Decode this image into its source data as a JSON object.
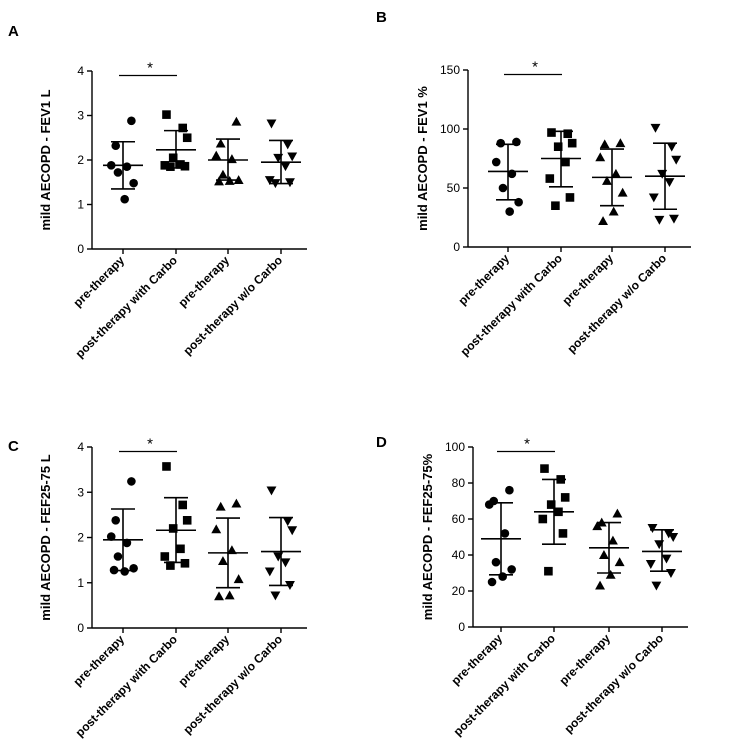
{
  "chart_data": [
    {
      "panel": "A",
      "type": "scatter",
      "ylabel": "mild AECOPD - FEV1 L",
      "ylim": [
        0,
        4
      ],
      "yticks": [
        0,
        1,
        2,
        3,
        4
      ],
      "categories": [
        "pre-therapy",
        "post-therapy with Carbo",
        "pre-therapy",
        "post-therapy w/o Carbo"
      ],
      "markers": [
        "circle",
        "square",
        "triangle-up",
        "triangle-down"
      ],
      "groups": [
        {
          "points": [
            2.88,
            2.32,
            1.88,
            1.85,
            1.72,
            1.48,
            1.12
          ],
          "mean": 1.88,
          "error": [
            1.35,
            2.41
          ]
        },
        {
          "points": [
            3.02,
            2.72,
            2.5,
            2.05,
            1.9,
            1.88,
            1.86,
            1.85
          ],
          "mean": 2.23,
          "error": [
            1.82,
            2.66
          ]
        },
        {
          "points": [
            2.86,
            2.37,
            2.1,
            2.02,
            1.67,
            1.55,
            1.53,
            1.52
          ],
          "mean": 2.0,
          "error": [
            1.55,
            2.47
          ]
        },
        {
          "points": [
            2.82,
            2.35,
            2.08,
            2.05,
            1.86,
            1.55,
            1.5,
            1.48
          ],
          "mean": 1.95,
          "error": [
            1.47,
            2.44
          ]
        }
      ],
      "significance": {
        "from": 0,
        "to": 1,
        "label": "*"
      }
    },
    {
      "panel": "B",
      "type": "scatter",
      "ylabel": "mild AECOPD - FEV1 %",
      "ylim": [
        0,
        150
      ],
      "yticks": [
        0,
        50,
        100,
        150
      ],
      "categories": [
        "pre-therapy",
        "post-therapy with Carbo",
        "pre-therapy",
        "post-therapy w/o Carbo"
      ],
      "markers": [
        "circle",
        "square",
        "triangle-up",
        "triangle-down"
      ],
      "groups": [
        {
          "points": [
            89,
            88,
            72,
            62,
            50,
            38,
            30
          ],
          "mean": 64,
          "error": [
            40,
            87
          ]
        },
        {
          "points": [
            97,
            96,
            88,
            85,
            72,
            58,
            42,
            35
          ],
          "mean": 75,
          "error": [
            51,
            98
          ]
        },
        {
          "points": [
            88,
            87,
            76,
            62,
            56,
            46,
            30,
            22
          ],
          "mean": 59,
          "error": [
            35,
            83
          ]
        },
        {
          "points": [
            101,
            85,
            74,
            62,
            55,
            42,
            24,
            23
          ],
          "mean": 60,
          "error": [
            32,
            88
          ]
        }
      ],
      "significance": {
        "from": 0,
        "to": 1,
        "label": "*"
      }
    },
    {
      "panel": "C",
      "type": "scatter",
      "ylabel": "mild AECOPD - FEF25-75 L",
      "ylim": [
        0,
        4
      ],
      "yticks": [
        0,
        1,
        2,
        3,
        4
      ],
      "categories": [
        "pre-therapy",
        "post-therapy with Carbo",
        "pre-therapy",
        "post-therapy w/o Carbo"
      ],
      "markers": [
        "circle",
        "square",
        "triangle-up",
        "triangle-down"
      ],
      "groups": [
        {
          "points": [
            3.24,
            2.38,
            2.02,
            1.88,
            1.58,
            1.32,
            1.25,
            1.28
          ],
          "mean": 1.95,
          "error": [
            1.27,
            2.63
          ]
        },
        {
          "points": [
            3.57,
            2.72,
            2.38,
            2.2,
            1.75,
            1.58,
            1.43,
            1.38
          ],
          "mean": 2.16,
          "error": [
            1.45,
            2.88
          ]
        },
        {
          "points": [
            2.75,
            2.68,
            2.18,
            1.72,
            1.48,
            1.08,
            0.72,
            0.7
          ],
          "mean": 1.66,
          "error": [
            0.89,
            2.43
          ]
        },
        {
          "points": [
            3.04,
            2.36,
            2.16,
            1.58,
            1.45,
            1.25,
            0.95,
            0.72
          ],
          "mean": 1.69,
          "error": [
            0.94,
            2.44
          ]
        }
      ],
      "significance": {
        "from": 0,
        "to": 1,
        "label": "*"
      }
    },
    {
      "panel": "D",
      "type": "scatter",
      "ylabel": "mild AECOPD - FEF25-75%",
      "ylim": [
        0,
        100
      ],
      "yticks": [
        0,
        20,
        40,
        60,
        80,
        100
      ],
      "categories": [
        "pre-therapy",
        "post-therapy with Carbo",
        "pre-therapy",
        "post-therapy w/o Carbo"
      ],
      "markers": [
        "circle",
        "square",
        "triangle-up",
        "triangle-down"
      ],
      "groups": [
        {
          "points": [
            76,
            70,
            68,
            52,
            36,
            32,
            28,
            25
          ],
          "mean": 49,
          "error": [
            29,
            69
          ]
        },
        {
          "points": [
            88,
            82,
            72,
            68,
            64,
            60,
            52,
            31
          ],
          "mean": 64,
          "error": [
            46,
            82
          ]
        },
        {
          "points": [
            63,
            58,
            56,
            48,
            40,
            36,
            29,
            23
          ],
          "mean": 44,
          "error": [
            30,
            58
          ]
        },
        {
          "points": [
            55,
            52,
            50,
            46,
            38,
            35,
            30,
            23
          ],
          "mean": 42,
          "error": [
            31,
            54
          ]
        }
      ],
      "significance": {
        "from": 0,
        "to": 1,
        "label": "*"
      }
    }
  ]
}
